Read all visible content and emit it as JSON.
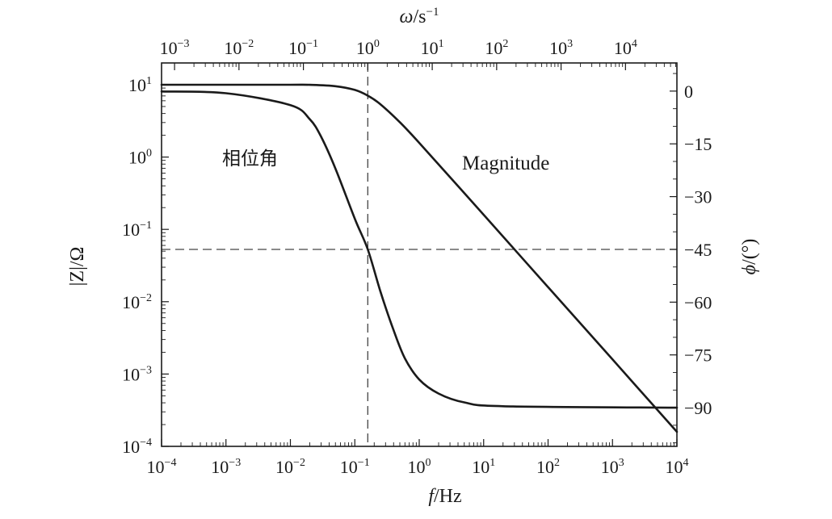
{
  "chart_data": {
    "type": "line",
    "title": "",
    "x_axis": {
      "scale": "log",
      "range": [
        0.0001,
        10000
      ],
      "ticks": [
        {
          "value": 0.0001,
          "base": "10",
          "exp": "−4"
        },
        {
          "value": 0.001,
          "base": "10",
          "exp": "−3"
        },
        {
          "value": 0.01,
          "base": "10",
          "exp": "−2"
        },
        {
          "value": 0.1,
          "base": "10",
          "exp": "−1"
        },
        {
          "value": 1,
          "base": "10",
          "exp": "0"
        },
        {
          "value": 10,
          "base": "10",
          "exp": "1"
        },
        {
          "value": 100,
          "base": "10",
          "exp": "2"
        },
        {
          "value": 1000,
          "base": "10",
          "exp": "3"
        },
        {
          "value": 10000,
          "base": "10",
          "exp": "4"
        }
      ],
      "label_italic": "f",
      "label_rest": "/Hz"
    },
    "x2_axis": {
      "scale": "log",
      "ticks": [
        {
          "value": 0.001,
          "base": "10",
          "exp": "−3"
        },
        {
          "value": 0.01,
          "base": "10",
          "exp": "−2"
        },
        {
          "value": 0.1,
          "base": "10",
          "exp": "−1"
        },
        {
          "value": 1,
          "base": "10",
          "exp": "0"
        },
        {
          "value": 10,
          "base": "10",
          "exp": "1"
        },
        {
          "value": 100,
          "base": "10",
          "exp": "2"
        },
        {
          "value": 1000,
          "base": "10",
          "exp": "3"
        },
        {
          "value": 10000,
          "base": "10",
          "exp": "4"
        }
      ],
      "label_italic": "ω",
      "label_rest": "/s",
      "label_sup": "−1"
    },
    "y_axis": {
      "scale": "log",
      "range": [
        0.0001,
        20
      ],
      "ticks": [
        {
          "value": 10,
          "base": "10",
          "exp": "1"
        },
        {
          "value": 1,
          "base": "10",
          "exp": "0"
        },
        {
          "value": 0.1,
          "base": "10",
          "exp": "−1"
        },
        {
          "value": 0.01,
          "base": "10",
          "exp": "−2"
        },
        {
          "value": 0.001,
          "base": "10",
          "exp": "−3"
        },
        {
          "value": 0.0001,
          "base": "10",
          "exp": "−4"
        }
      ],
      "label": "|Z|/Ω"
    },
    "y2_axis": {
      "scale": "linear",
      "range": [
        -101,
        8
      ],
      "ticks": [
        {
          "value": 0,
          "label": "0"
        },
        {
          "value": -15,
          "label": "−15"
        },
        {
          "value": -30,
          "label": "−30"
        },
        {
          "value": -45,
          "label": "−45"
        },
        {
          "value": -60,
          "label": "−60"
        },
        {
          "value": -75,
          "label": "−75"
        },
        {
          "value": -90,
          "label": "−90"
        }
      ],
      "label_italic": "ϕ",
      "label_rest": "/(°)"
    },
    "series": [
      {
        "name": "Magnitude",
        "axis": "left",
        "x": [
          0.0001,
          0.001,
          0.01,
          0.02,
          0.05,
          0.1,
          0.159,
          0.25,
          0.5,
          1,
          10,
          100,
          1000,
          10000
        ],
        "y": [
          10,
          10,
          10,
          9.98,
          9.54,
          8.47,
          7.07,
          5.37,
          3.03,
          1.57,
          0.159,
          0.0159,
          0.00159,
          0.000159
        ]
      },
      {
        "name": "相位角",
        "axis": "right",
        "x": [
          0.0001,
          0.001,
          0.01,
          0.02,
          0.03,
          0.05,
          0.1,
          0.159,
          0.25,
          0.4,
          0.6,
          1,
          2,
          5,
          20,
          10000
        ],
        "y": [
          -0.1,
          -0.6,
          -4,
          -8,
          -13,
          -22,
          -36.3,
          -45,
          -57,
          -68,
          -76,
          -82,
          -86,
          -88.5,
          -89.6,
          -90
        ]
      }
    ],
    "guides": [
      {
        "type": "vertical",
        "axis": "x",
        "value": 0.159
      },
      {
        "type": "horizontal",
        "axis": "right",
        "value": -45
      }
    ],
    "annotations": [
      {
        "text": "相位角",
        "series": "相位角"
      },
      {
        "text": "Magnitude",
        "series": "Magnitude"
      }
    ]
  }
}
